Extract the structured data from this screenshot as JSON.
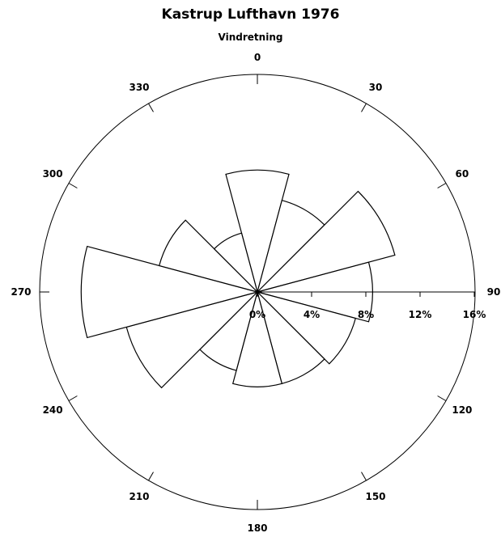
{
  "chart_data": {
    "type": "polar-bar",
    "title": "Kastrup Lufthavn 1976",
    "subtitle": "Vindretning",
    "direction_tick_labels": [
      "0",
      "30",
      "60",
      "90",
      "120",
      "150",
      "180",
      "210",
      "240",
      "270",
      "300",
      "330"
    ],
    "radial_axis": {
      "range": [
        0,
        16
      ],
      "ticks": [
        0,
        4,
        8,
        12,
        16
      ],
      "tick_labels": [
        "0%",
        "4%",
        "8%",
        "12%",
        "16%"
      ]
    },
    "sector_width_deg": 30,
    "grid": false,
    "series": [
      {
        "directions_deg": [
          0,
          30,
          60,
          90,
          120,
          150,
          180,
          210,
          240,
          270,
          300,
          330
        ],
        "values": [
          9.0,
          7.0,
          10.5,
          8.5,
          7.5,
          7.0,
          7.0,
          6.0,
          10.0,
          13.0,
          7.5,
          4.5
        ]
      }
    ]
  }
}
